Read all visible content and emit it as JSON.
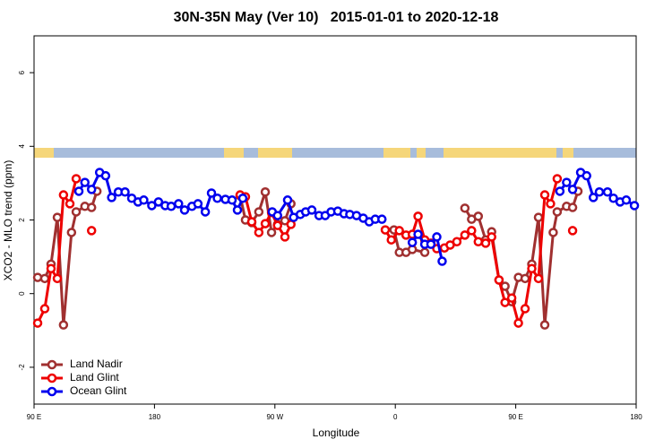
{
  "chart_data": {
    "type": "line",
    "title": "30N-35N May (Ver 10)   2015-01-01 to 2020-12-18",
    "x_label": "Longitude",
    "y_label": "XCO2 - MLO trend (ppm)",
    "xlim": [
      90,
      540
    ],
    "xticks": [
      {
        "value": 90,
        "label": "90 E"
      },
      {
        "value": 180,
        "label": "180"
      },
      {
        "value": 270,
        "label": "90 W"
      },
      {
        "value": 360,
        "label": "0"
      },
      {
        "value": 450,
        "label": "90 E"
      },
      {
        "value": 540,
        "label": "180"
      }
    ],
    "ylim": [
      -3,
      7
    ],
    "yticks": [
      -2,
      0,
      2,
      4,
      6
    ],
    "legend": "lower left",
    "series": [
      {
        "name": "Land Nadir",
        "color": "#a03030",
        "x": [
          92.7,
          98,
          102.7,
          107.4,
          112,
          118,
          121.5,
          128,
          133,
          137,
          200,
          244,
          248,
          252.7,
          258,
          262.8,
          267.5,
          272,
          277.5,
          282,
          320,
          359,
          363,
          368,
          372.7,
          382,
          400,
          412,
          417,
          422,
          427.5,
          432,
          437.5,
          442,
          447,
          452,
          457,
          462,
          467,
          471.7,
          478,
          481,
          488,
          492.5,
          496.5
        ],
        "values": [
          0.44,
          0.41,
          0.8,
          2.07,
          -0.85,
          1.66,
          2.22,
          2.37,
          2.34,
          2.78,
          null,
          2.66,
          2.0,
          1.93,
          2.22,
          2.76,
          1.66,
          1.88,
          1.98,
          2.44,
          null,
          1.73,
          1.12,
          1.12,
          1.2,
          1.12,
          null,
          2.32,
          2.02,
          2.1,
          1.46,
          1.68,
          0.37,
          0.2,
          -0.22,
          0.44,
          0.41,
          0.8,
          2.07,
          -0.85,
          1.66,
          2.22,
          2.37,
          2.34,
          2.78
        ]
      },
      {
        "name": "Land Glint",
        "color": "#ee0000",
        "x": [
          92.7,
          98,
          102.7,
          107.4,
          112,
          116.8,
          121.5,
          127,
          133,
          200,
          244,
          248,
          252.7,
          258,
          262.8,
          267.5,
          272,
          277.5,
          282,
          320,
          352.5,
          357,
          363,
          368,
          372.7,
          377,
          382,
          386.6,
          391,
          396.7,
          401,
          406,
          412,
          417,
          422,
          427.5,
          432,
          437.5,
          442,
          447,
          452,
          457,
          462,
          467,
          471.7,
          476,
          481,
          487,
          492.5
        ],
        "values": [
          -0.8,
          -0.41,
          0.68,
          0.41,
          2.68,
          2.44,
          3.12,
          null,
          1.71,
          null,
          2.68,
          2.63,
          1.95,
          1.66,
          1.9,
          2.2,
          1.85,
          1.54,
          1.88,
          null,
          1.73,
          1.46,
          1.71,
          1.59,
          1.61,
          2.1,
          1.46,
          1.37,
          1.22,
          1.24,
          1.32,
          1.41,
          1.59,
          1.71,
          1.41,
          1.37,
          1.54,
          0.37,
          -0.24,
          -0.12,
          -0.8,
          -0.41,
          0.68,
          0.41,
          2.68,
          2.44,
          3.12,
          null,
          1.71
        ]
      },
      {
        "name": "Ocean Glint",
        "color": "#0000ee",
        "x": [
          123.5,
          128,
          133,
          139,
          143.5,
          148,
          153,
          158,
          163,
          167.7,
          172,
          178,
          183,
          188,
          192.5,
          198,
          202.5,
          208,
          212.5,
          218,
          222.6,
          227,
          233,
          238,
          242,
          246,
          257,
          268,
          272,
          279.5,
          284,
          289,
          293,
          297.6,
          303,
          307.6,
          312,
          317,
          321.7,
          326,
          331,
          336,
          340.5,
          345,
          350,
          360,
          372.7,
          377,
          382,
          386.6,
          391,
          395,
          440,
          483,
          488,
          492.5,
          498.5,
          503,
          508,
          512.5,
          518.6,
          523,
          528,
          532.6,
          538.7
        ],
        "values": [
          2.78,
          3.02,
          2.83,
          3.29,
          3.2,
          2.61,
          2.76,
          2.76,
          2.59,
          2.49,
          2.54,
          2.39,
          2.49,
          2.39,
          2.37,
          2.44,
          2.27,
          2.37,
          2.44,
          2.22,
          2.73,
          2.59,
          2.56,
          2.54,
          2.27,
          2.59,
          null,
          2.22,
          2.12,
          2.54,
          2.07,
          2.15,
          2.22,
          2.27,
          2.12,
          2.12,
          2.22,
          2.24,
          2.17,
          2.15,
          2.12,
          2.05,
          1.95,
          2.02,
          2.02,
          null,
          1.39,
          1.61,
          1.34,
          1.34,
          1.54,
          0.88,
          null,
          2.78,
          3.02,
          2.83,
          3.29,
          3.2,
          2.61,
          2.76,
          2.76,
          2.59,
          2.49,
          2.54,
          2.39
        ]
      }
    ]
  }
}
